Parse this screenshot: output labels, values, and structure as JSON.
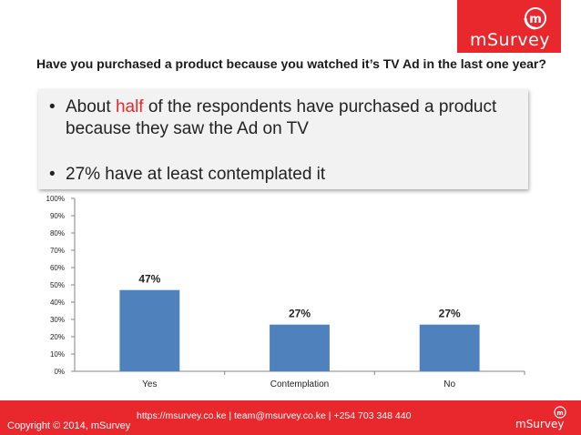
{
  "brand": {
    "logo_text": "mSurvey",
    "logo_glyph": "m",
    "footer_logo_text": "mSurvey",
    "footer_logo_glyph": "m"
  },
  "colors": {
    "accent": "#e8282d",
    "bar": "#4f81bd",
    "callout_bg": "#f2f2f2"
  },
  "question": "Have you purchased a product  because you watched it’s TV Ad in the last one year?",
  "callout": {
    "bullet": "•",
    "line1_before": "About ",
    "line1_highlight": "half",
    "line1_after": " of the respondents have purchased a product because they saw the Ad on TV",
    "line2": "27% have at least contemplated it"
  },
  "chart_data": {
    "type": "bar",
    "categories": [
      "Yes",
      "Contemplation",
      "No"
    ],
    "values": [
      47,
      27,
      27
    ],
    "data_labels": [
      "47%",
      "27%",
      "27%"
    ],
    "ylim": [
      0,
      100
    ],
    "yticks": [
      "0%",
      "10%",
      "20%",
      "30%",
      "40%",
      "50%",
      "60%",
      "70%",
      "80%",
      "90%",
      "100%"
    ],
    "grid": false,
    "legend": "none",
    "title": "",
    "xlabel": "",
    "ylabel": ""
  },
  "footer": {
    "contact": "https://msurvey.co.ke | team@msurvey.co.ke | +254 703 348 440",
    "copyright": "Copyright © 2014, mSurvey"
  }
}
